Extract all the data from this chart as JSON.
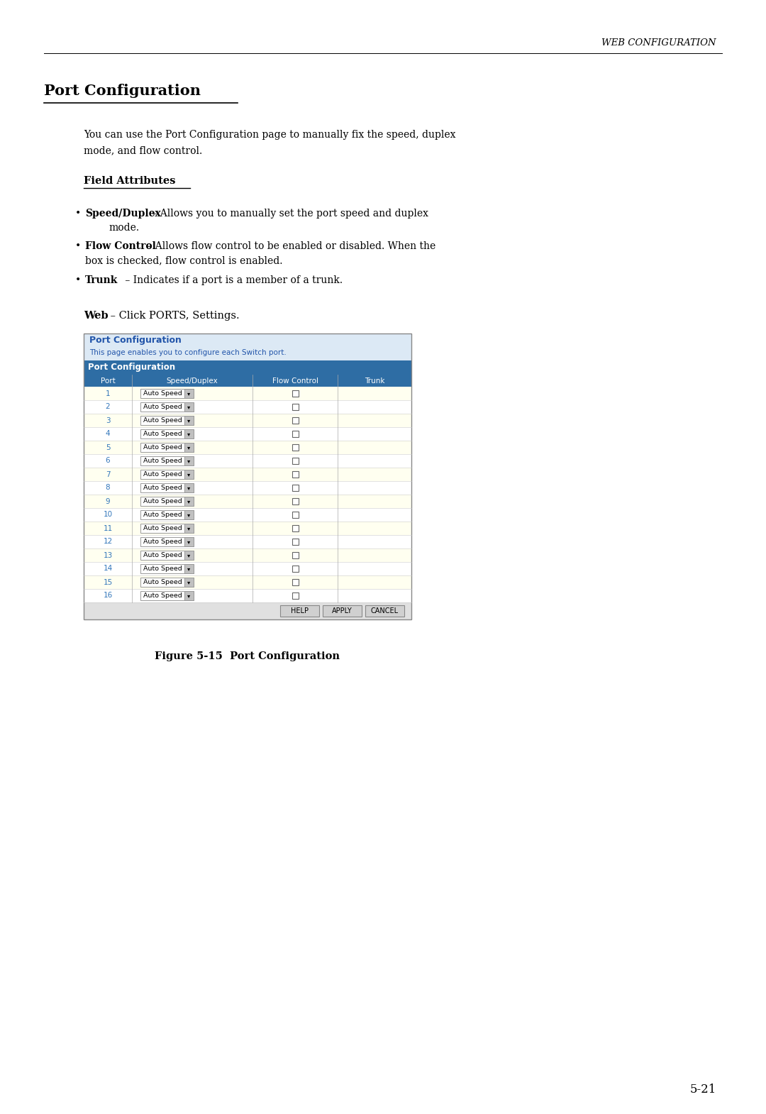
{
  "page_title": "WEB CONFIGURATION",
  "section_title": "Port Configuration",
  "intro_line1": "You can use the Port Configuration page to manually fix the speed, duplex",
  "intro_line2": "mode, and flow control.",
  "field_attributes_title": "Field Attributes",
  "bullet1_bold": "Speed/Duplex",
  "bullet1_rest": " – Allows you to manually set the port speed and duplex",
  "bullet1_line2": "mode.",
  "bullet2_bold": "Flow Control",
  "bullet2_rest": " – Allows flow control to be enabled or disabled. When the",
  "bullet2_line2": "box is checked, flow control is enabled.",
  "bullet3_bold": "Trunk",
  "bullet3_rest": " – Indicates if a port is a member of a trunk.",
  "web_label": "Web",
  "web_rest": " – Click PORTS, Settings.",
  "screenshot_title": "Port Configuration",
  "screenshot_subtitle": "This page enables you to configure each Switch port.",
  "table_section_label": "Port Configuration",
  "table_headers": [
    "Port",
    "Speed/Duplex",
    "Flow Control",
    "Trunk"
  ],
  "num_rows": 16,
  "figure_caption": "Figure 5-15  Port Configuration",
  "page_number": "5-21",
  "header_bg": "#2e6da4",
  "header_fg": "#ffffff",
  "row_odd_color": "#fffff0",
  "row_even_color": "#ffffff",
  "table_border": "#aaaaaa",
  "screenshot_header_bg": "#dce9f5",
  "screenshot_header_fg": "#2255aa",
  "section_bar_bg": "#2e6da4",
  "section_bar_fg": "#ffffff",
  "col_header_bg": "#2e6da4",
  "button_bg": "#d8d8d8",
  "button_border": "#888888",
  "port_color": "#3377bb",
  "page_bg": "#ffffff",
  "text_color": "#000000",
  "header_rule_color": "#000000"
}
